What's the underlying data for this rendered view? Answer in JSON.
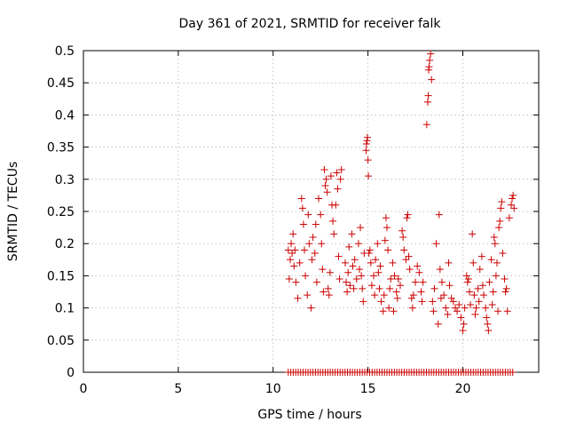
{
  "chart_data": {
    "type": "scatter",
    "title": "Day 361 of 2021, SRMTID for receiver falk",
    "xlabel": "GPS time / hours",
    "ylabel": "SRMTID / TECUs",
    "xlim": [
      0,
      24
    ],
    "ylim": [
      0,
      0.5
    ],
    "xticks": [
      {
        "value": 0,
        "label": "0"
      },
      {
        "value": 5,
        "label": "5"
      },
      {
        "value": 10,
        "label": "10"
      },
      {
        "value": 15,
        "label": "15"
      },
      {
        "value": 20,
        "label": "20"
      }
    ],
    "yticks": [
      {
        "value": 0,
        "label": "0"
      },
      {
        "value": 0.05,
        "label": "0.05"
      },
      {
        "value": 0.1,
        "label": "0.1"
      },
      {
        "value": 0.15,
        "label": "0.15"
      },
      {
        "value": 0.2,
        "label": "0.2"
      },
      {
        "value": 0.25,
        "label": "0.25"
      },
      {
        "value": 0.3,
        "label": "0.3"
      },
      {
        "value": 0.35,
        "label": "0.35"
      },
      {
        "value": 0.4,
        "label": "0.4"
      },
      {
        "value": 0.45,
        "label": "0.45"
      },
      {
        "value": 0.5,
        "label": "0.5"
      }
    ],
    "grid": true,
    "marker": "+",
    "color": "#cc0000",
    "series": [
      {
        "name": "SRMTID",
        "points": [
          [
            10.8,
            0.19
          ],
          [
            10.85,
            0.145
          ],
          [
            10.9,
            0.175
          ],
          [
            10.95,
            0.2
          ],
          [
            11.0,
            0.185
          ],
          [
            11.05,
            0.215
          ],
          [
            11.1,
            0.165
          ],
          [
            11.15,
            0.19
          ],
          [
            11.2,
            0.14
          ],
          [
            11.3,
            0.115
          ],
          [
            11.4,
            0.17
          ],
          [
            11.5,
            0.27
          ],
          [
            11.55,
            0.255
          ],
          [
            11.6,
            0.23
          ],
          [
            11.65,
            0.19
          ],
          [
            11.7,
            0.15
          ],
          [
            11.8,
            0.12
          ],
          [
            11.85,
            0.245
          ],
          [
            11.9,
            0.2
          ],
          [
            12.0,
            0.1
          ],
          [
            12.05,
            0.175
          ],
          [
            12.1,
            0.21
          ],
          [
            12.2,
            0.185
          ],
          [
            12.25,
            0.23
          ],
          [
            12.3,
            0.14
          ],
          [
            12.4,
            0.27
          ],
          [
            12.5,
            0.245
          ],
          [
            12.55,
            0.2
          ],
          [
            12.6,
            0.16
          ],
          [
            12.65,
            0.125
          ],
          [
            12.7,
            0.315
          ],
          [
            12.75,
            0.29
          ],
          [
            12.8,
            0.3
          ],
          [
            12.85,
            0.28
          ],
          [
            12.9,
            0.13
          ],
          [
            12.95,
            0.12
          ],
          [
            13.0,
            0.155
          ],
          [
            13.05,
            0.305
          ],
          [
            13.1,
            0.26
          ],
          [
            13.15,
            0.235
          ],
          [
            13.2,
            0.215
          ],
          [
            13.3,
            0.26
          ],
          [
            13.35,
            0.31
          ],
          [
            13.4,
            0.285
          ],
          [
            13.45,
            0.18
          ],
          [
            13.5,
            0.145
          ],
          [
            13.55,
            0.3
          ],
          [
            13.6,
            0.315
          ],
          [
            13.8,
            0.17
          ],
          [
            13.85,
            0.14
          ],
          [
            13.9,
            0.125
          ],
          [
            13.95,
            0.155
          ],
          [
            14.0,
            0.195
          ],
          [
            14.05,
            0.135
          ],
          [
            14.15,
            0.215
          ],
          [
            14.2,
            0.165
          ],
          [
            14.25,
            0.13
          ],
          [
            14.3,
            0.175
          ],
          [
            14.4,
            0.145
          ],
          [
            14.5,
            0.2
          ],
          [
            14.55,
            0.16
          ],
          [
            14.6,
            0.225
          ],
          [
            14.65,
            0.15
          ],
          [
            14.7,
            0.13
          ],
          [
            14.75,
            0.11
          ],
          [
            14.8,
            0.185
          ],
          [
            14.9,
            0.345
          ],
          [
            14.92,
            0.355
          ],
          [
            14.95,
            0.36
          ],
          [
            14.97,
            0.365
          ],
          [
            15.0,
            0.33
          ],
          [
            15.02,
            0.305
          ],
          [
            15.05,
            0.185
          ],
          [
            15.1,
            0.19
          ],
          [
            15.15,
            0.17
          ],
          [
            15.2,
            0.135
          ],
          [
            15.3,
            0.15
          ],
          [
            15.35,
            0.12
          ],
          [
            15.4,
            0.175
          ],
          [
            15.5,
            0.2
          ],
          [
            15.55,
            0.155
          ],
          [
            15.6,
            0.13
          ],
          [
            15.65,
            0.165
          ],
          [
            15.7,
            0.11
          ],
          [
            15.8,
            0.095
          ],
          [
            15.85,
            0.12
          ],
          [
            15.9,
            0.205
          ],
          [
            15.95,
            0.24
          ],
          [
            16.0,
            0.225
          ],
          [
            16.05,
            0.19
          ],
          [
            16.1,
            0.1
          ],
          [
            16.15,
            0.13
          ],
          [
            16.2,
            0.145
          ],
          [
            16.3,
            0.17
          ],
          [
            16.35,
            0.095
          ],
          [
            16.4,
            0.15
          ],
          [
            16.5,
            0.125
          ],
          [
            16.55,
            0.115
          ],
          [
            16.6,
            0.145
          ],
          [
            16.7,
            0.135
          ],
          [
            16.8,
            0.22
          ],
          [
            16.85,
            0.21
          ],
          [
            16.9,
            0.19
          ],
          [
            17.0,
            0.175
          ],
          [
            17.05,
            0.24
          ],
          [
            17.1,
            0.245
          ],
          [
            17.15,
            0.18
          ],
          [
            17.2,
            0.16
          ],
          [
            17.3,
            0.115
          ],
          [
            17.35,
            0.1
          ],
          [
            17.4,
            0.12
          ],
          [
            17.5,
            0.14
          ],
          [
            17.6,
            0.165
          ],
          [
            17.7,
            0.155
          ],
          [
            17.8,
            0.125
          ],
          [
            17.85,
            0.11
          ],
          [
            17.9,
            0.14
          ],
          [
            18.1,
            0.385
          ],
          [
            18.15,
            0.42
          ],
          [
            18.18,
            0.43
          ],
          [
            18.2,
            0.47
          ],
          [
            18.22,
            0.475
          ],
          [
            18.25,
            0.485
          ],
          [
            18.3,
            0.495
          ],
          [
            18.35,
            0.455
          ],
          [
            18.4,
            0.11
          ],
          [
            18.45,
            0.095
          ],
          [
            18.5,
            0.13
          ],
          [
            18.6,
            0.2
          ],
          [
            18.7,
            0.075
          ],
          [
            18.75,
            0.245
          ],
          [
            18.8,
            0.16
          ],
          [
            18.85,
            0.115
          ],
          [
            18.9,
            0.14
          ],
          [
            19.0,
            0.12
          ],
          [
            19.1,
            0.1
          ],
          [
            19.2,
            0.09
          ],
          [
            19.25,
            0.17
          ],
          [
            19.3,
            0.135
          ],
          [
            19.4,
            0.115
          ],
          [
            19.5,
            0.11
          ],
          [
            19.6,
            0.1
          ],
          [
            19.7,
            0.095
          ],
          [
            19.8,
            0.105
          ],
          [
            19.9,
            0.085
          ],
          [
            20.0,
            0.065
          ],
          [
            20.05,
            0.075
          ],
          [
            20.1,
            0.1
          ],
          [
            20.2,
            0.15
          ],
          [
            20.25,
            0.14
          ],
          [
            20.3,
            0.145
          ],
          [
            20.35,
            0.125
          ],
          [
            20.4,
            0.105
          ],
          [
            20.5,
            0.215
          ],
          [
            20.55,
            0.17
          ],
          [
            20.6,
            0.12
          ],
          [
            20.65,
            0.09
          ],
          [
            20.7,
            0.1
          ],
          [
            20.8,
            0.13
          ],
          [
            20.85,
            0.11
          ],
          [
            20.9,
            0.16
          ],
          [
            21.0,
            0.18
          ],
          [
            21.05,
            0.135
          ],
          [
            21.1,
            0.12
          ],
          [
            21.2,
            0.1
          ],
          [
            21.25,
            0.085
          ],
          [
            21.3,
            0.075
          ],
          [
            21.35,
            0.065
          ],
          [
            21.4,
            0.14
          ],
          [
            21.5,
            0.175
          ],
          [
            21.55,
            0.105
          ],
          [
            21.6,
            0.125
          ],
          [
            21.65,
            0.21
          ],
          [
            21.7,
            0.2
          ],
          [
            21.75,
            0.15
          ],
          [
            21.8,
            0.17
          ],
          [
            21.85,
            0.095
          ],
          [
            21.9,
            0.225
          ],
          [
            21.95,
            0.235
          ],
          [
            22.0,
            0.255
          ],
          [
            22.05,
            0.265
          ],
          [
            22.1,
            0.185
          ],
          [
            22.2,
            0.145
          ],
          [
            22.25,
            0.125
          ],
          [
            22.3,
            0.13
          ],
          [
            22.35,
            0.095
          ],
          [
            22.45,
            0.24
          ],
          [
            22.55,
            0.26
          ],
          [
            22.6,
            0.27
          ],
          [
            22.65,
            0.275
          ],
          [
            22.7,
            0.255
          ]
        ]
      },
      {
        "name": "zero",
        "x_start": 10.8,
        "x_end": 22.75,
        "x_step": 0.13,
        "y": 0
      }
    ]
  }
}
